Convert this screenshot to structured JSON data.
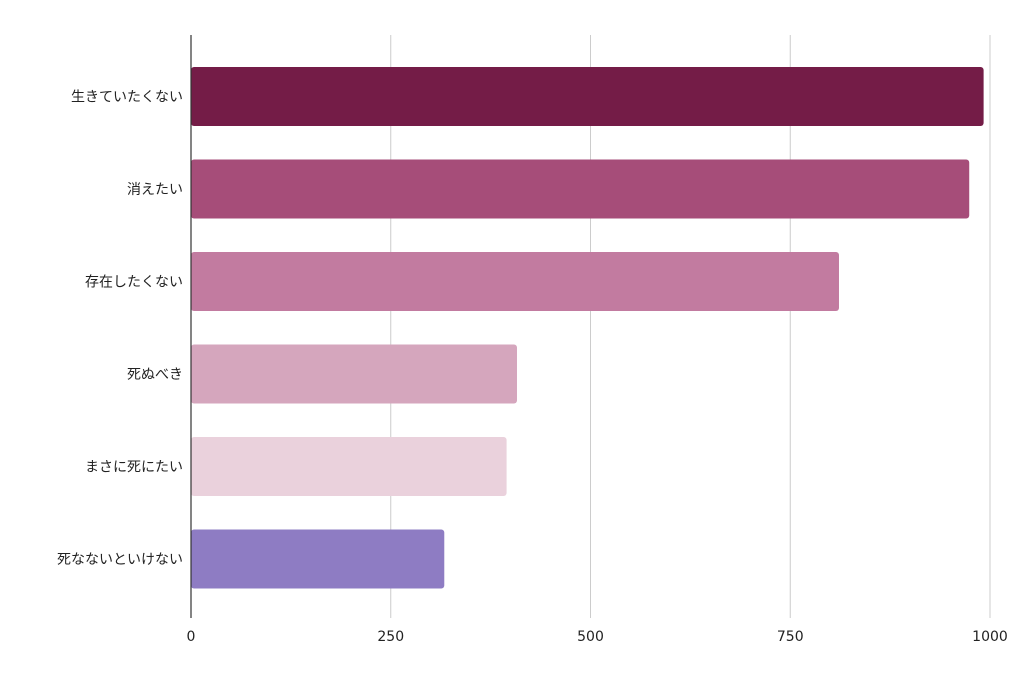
{
  "chart_data": {
    "type": "bar",
    "orientation": "horizontal",
    "title": "",
    "xlabel": "",
    "ylabel": "",
    "categories": [
      "生きていたくない",
      "消えたい",
      "存在したくない",
      "死ぬべき",
      "まさに死にたい",
      "死なないといけない"
    ],
    "values": [
      992,
      974,
      811,
      408,
      395,
      317
    ],
    "colors": [
      "#741c47",
      "#a64d79",
      "#c27ba0",
      "#d5a6bd",
      "#ead1dc",
      "#8e7cc3"
    ],
    "xlim": [
      0,
      1000
    ],
    "xticks": [
      "0",
      "250",
      "500",
      "750",
      "1000"
    ],
    "grid": true,
    "legend": "none"
  }
}
